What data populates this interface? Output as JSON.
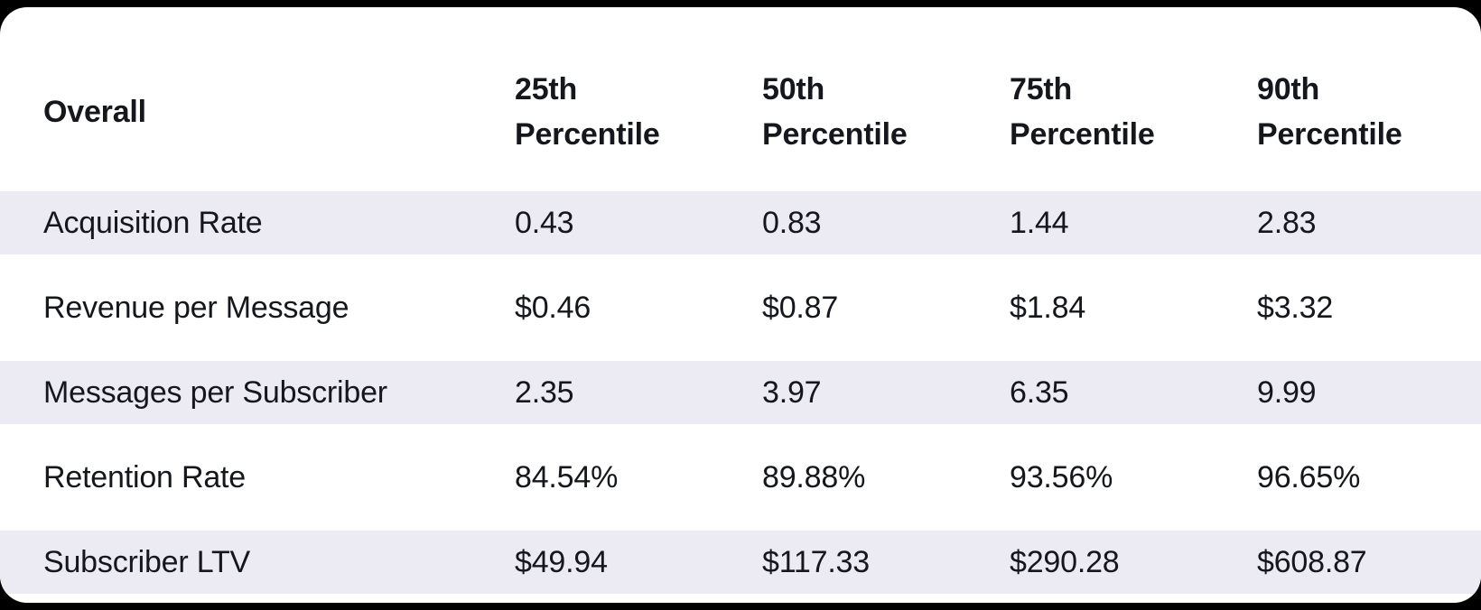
{
  "chart_data": {
    "type": "table",
    "corner_header": "Overall",
    "columns": [
      "25th Percentile",
      "50th Percentile",
      "75th Percentile",
      "90th Percentile"
    ],
    "rows": [
      {
        "metric": "Acquisition Rate",
        "values": [
          "0.43",
          "0.83",
          "1.44",
          "2.83"
        ]
      },
      {
        "metric": "Revenue per Message",
        "values": [
          "$0.46",
          "$0.87",
          "$1.84",
          "$3.32"
        ]
      },
      {
        "metric": "Messages per Subscriber",
        "values": [
          "2.35",
          "3.97",
          "6.35",
          "9.99"
        ]
      },
      {
        "metric": "Retention Rate",
        "values": [
          "84.54%",
          "89.88%",
          "93.56%",
          "96.65%"
        ]
      },
      {
        "metric": "Subscriber LTV",
        "values": [
          "$49.94",
          "$117.33",
          "$290.28",
          "$608.87"
        ]
      }
    ],
    "layout_hints": {
      "striped_rows": [
        0,
        2,
        4
      ],
      "grid": "off",
      "header_position": "top"
    }
  },
  "colors": {
    "page_background": "#000000",
    "card_background": "#FFFFFF",
    "stripe": "#ECEBF4",
    "text": "#15171C"
  }
}
